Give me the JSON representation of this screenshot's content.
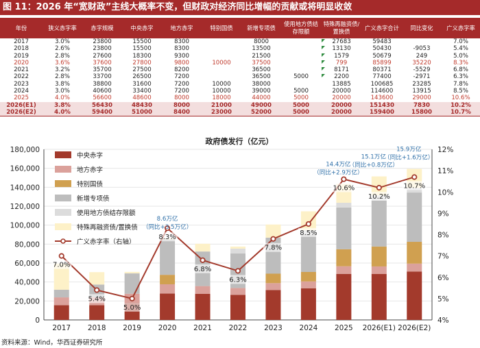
{
  "figure_title": "图 11：2026 年“宽财政”主线大概率不变，但财政对经济同比增幅的贡献或将明显收敛",
  "source": "资料来源：Wind，华西证券研究所",
  "colors": {
    "banner": "#a52a2a",
    "central": "#a33a2c",
    "local": "#dba19b",
    "special_treasury": "#d0a050",
    "special_bonds": "#bdbdbd",
    "unused_quota": "#dcdcdc",
    "refinancing": "#fdf1c8",
    "deficit_rate": "#a33a2c"
  },
  "table": {
    "headers": [
      "年份",
      "狭义赤字率",
      "赤字规模",
      "中央赤字",
      "地方赤字",
      "特别国债",
      "新增专项债",
      "使用地方债结存限额",
      "特殊再融资债/置换债",
      "广义赤字合计",
      "同比变化",
      "广义赤字率"
    ],
    "rows": [
      {
        "cells": [
          "2017",
          "3.0%",
          "23800",
          "15500",
          "8300",
          "",
          "8000",
          "",
          "27683",
          "59483",
          "",
          "7.0%"
        ],
        "style": "",
        "flag": true
      },
      {
        "cells": [
          "2018",
          "2.6%",
          "23800",
          "15500",
          "8300",
          "",
          "13500",
          "",
          "13130",
          "50430",
          "-9053",
          "5.4%"
        ],
        "style": "",
        "flag": true
      },
      {
        "cells": [
          "2019",
          "2.8%",
          "27600",
          "18300",
          "9300",
          "",
          "21500",
          "",
          "1579",
          "50679",
          "249",
          "5.0%"
        ],
        "style": "",
        "flag": true
      },
      {
        "cells": [
          "2020",
          "3.6%",
          "37600",
          "27800",
          "9800",
          "10000",
          "37500",
          "",
          "799",
          "85899",
          "35220",
          "8.3%"
        ],
        "style": "hl",
        "flag": true
      },
      {
        "cells": [
          "2021",
          "3.2%",
          "35700",
          "27500",
          "8200",
          "",
          "36500",
          "",
          "8171",
          "80371",
          "-5529",
          "6.8%"
        ],
        "style": "",
        "flag": true
      },
      {
        "cells": [
          "2022",
          "2.8%",
          "33700",
          "26500",
          "7200",
          "",
          "36500",
          "5000",
          "2200",
          "77400",
          "-2971",
          "6.3%"
        ],
        "style": "",
        "flag": true
      },
      {
        "cells": [
          "2023",
          "3.8%",
          "38800",
          "31600",
          "7200",
          "10000",
          "38000",
          "",
          "13885",
          "100685",
          "23285",
          "7.8%"
        ],
        "style": "",
        "flag": false
      },
      {
        "cells": [
          "2024",
          "3.0%",
          "40600",
          "33400",
          "7200",
          "10000",
          "39000",
          "5000",
          "20000",
          "114600",
          "13915",
          "8.5%"
        ],
        "style": "",
        "flag": false
      },
      {
        "cells": [
          "2025",
          "4.0%",
          "56600",
          "48600",
          "8000",
          "18000",
          "44000",
          "5000",
          "20000",
          "143600",
          "29000",
          "10.6%"
        ],
        "style": "hl",
        "flag": false
      },
      {
        "cells": [
          "2026(E1)",
          "3.8%",
          "56430",
          "48430",
          "8000",
          "21000",
          "49000",
          "5000",
          "20000",
          "151430",
          "7830",
          "10.2%"
        ],
        "style": "est",
        "flag": false
      },
      {
        "cells": [
          "2026(E2)",
          "4.0%",
          "59400",
          "51000",
          "8400",
          "23000",
          "52000",
          "5000",
          "20000",
          "159400",
          "15800",
          "10.7%"
        ],
        "style": "est",
        "flag": false
      }
    ]
  },
  "chart_data": {
    "type": "bar",
    "stacked": true,
    "title": "政府债发行（亿元）",
    "categories": [
      "2017",
      "2018",
      "2019",
      "2020",
      "2021",
      "2022",
      "2023",
      "2024",
      "2025",
      "2026(E1)",
      "2026(E2)"
    ],
    "ylim": [
      0,
      180000
    ],
    "yticks": [
      0,
      20000,
      40000,
      60000,
      80000,
      100000,
      120000,
      140000,
      160000,
      180000
    ],
    "ytick_labels": [
      "0",
      "20,000",
      "40,000",
      "60,000",
      "80,000",
      "100,000",
      "120,000",
      "140,000",
      "160,000",
      "180,000"
    ],
    "y2lim": [
      4,
      12
    ],
    "y2ticks": [
      4,
      5,
      6,
      7,
      8,
      9,
      10,
      11,
      12
    ],
    "y2tick_labels": [
      "4%",
      "5%",
      "6%",
      "7%",
      "8%",
      "9%",
      "10%",
      "11%",
      "12%"
    ],
    "series": [
      {
        "name": "中央赤字",
        "color": "#a33a2c",
        "values": [
          15500,
          15500,
          18300,
          27800,
          27500,
          26500,
          31600,
          33400,
          48600,
          48430,
          51000
        ]
      },
      {
        "name": "地方赤字",
        "color": "#dba19b",
        "values": [
          8300,
          8300,
          9300,
          9800,
          8200,
          7200,
          7200,
          7200,
          8000,
          8000,
          8400
        ]
      },
      {
        "name": "特别国债",
        "color": "#d0a050",
        "values": [
          0,
          0,
          0,
          10000,
          0,
          0,
          10000,
          10000,
          18000,
          21000,
          23000
        ]
      },
      {
        "name": "新增专项债",
        "color": "#bdbdbd",
        "values": [
          8000,
          13500,
          21500,
          37500,
          36500,
          36500,
          38000,
          39000,
          44000,
          49000,
          52000
        ]
      },
      {
        "name": "使用地方债结存限额",
        "color": "#dcdcdc",
        "values": [
          0,
          0,
          0,
          0,
          0,
          5000,
          0,
          5000,
          5000,
          5000,
          5000
        ]
      },
      {
        "name": "特殊再融资债/置换债",
        "color": "#fdf1c8",
        "values": [
          27683,
          13130,
          1579,
          799,
          8171,
          2200,
          13885,
          20000,
          20000,
          20000,
          20000
        ]
      }
    ],
    "line": {
      "name": "广义赤字率（右轴）",
      "color": "#a33a2c",
      "axis": "right",
      "values": [
        7.0,
        5.4,
        5.0,
        8.3,
        6.8,
        6.3,
        7.8,
        8.5,
        10.6,
        10.2,
        10.7
      ],
      "labels": [
        "7.0%",
        "5.4%",
        "5.0%",
        "8.3%",
        "6.8%",
        "6.3%",
        "7.8%",
        "8.5%",
        "10.6%",
        "10.2%",
        "10.7%"
      ]
    },
    "annotations": [
      {
        "index": 3,
        "lines": [
          "8.6万亿",
          "（同比+3.5万亿）"
        ]
      },
      {
        "index": 8,
        "lines": [
          "14.4万亿",
          "（同比+2.9万亿）"
        ]
      },
      {
        "index": 9,
        "lines": [
          "15.1万亿",
          "（同比+0.8万亿）"
        ]
      },
      {
        "index": 10,
        "lines": [
          "15.9万亿",
          "（同比+1.6万亿）"
        ]
      }
    ]
  }
}
